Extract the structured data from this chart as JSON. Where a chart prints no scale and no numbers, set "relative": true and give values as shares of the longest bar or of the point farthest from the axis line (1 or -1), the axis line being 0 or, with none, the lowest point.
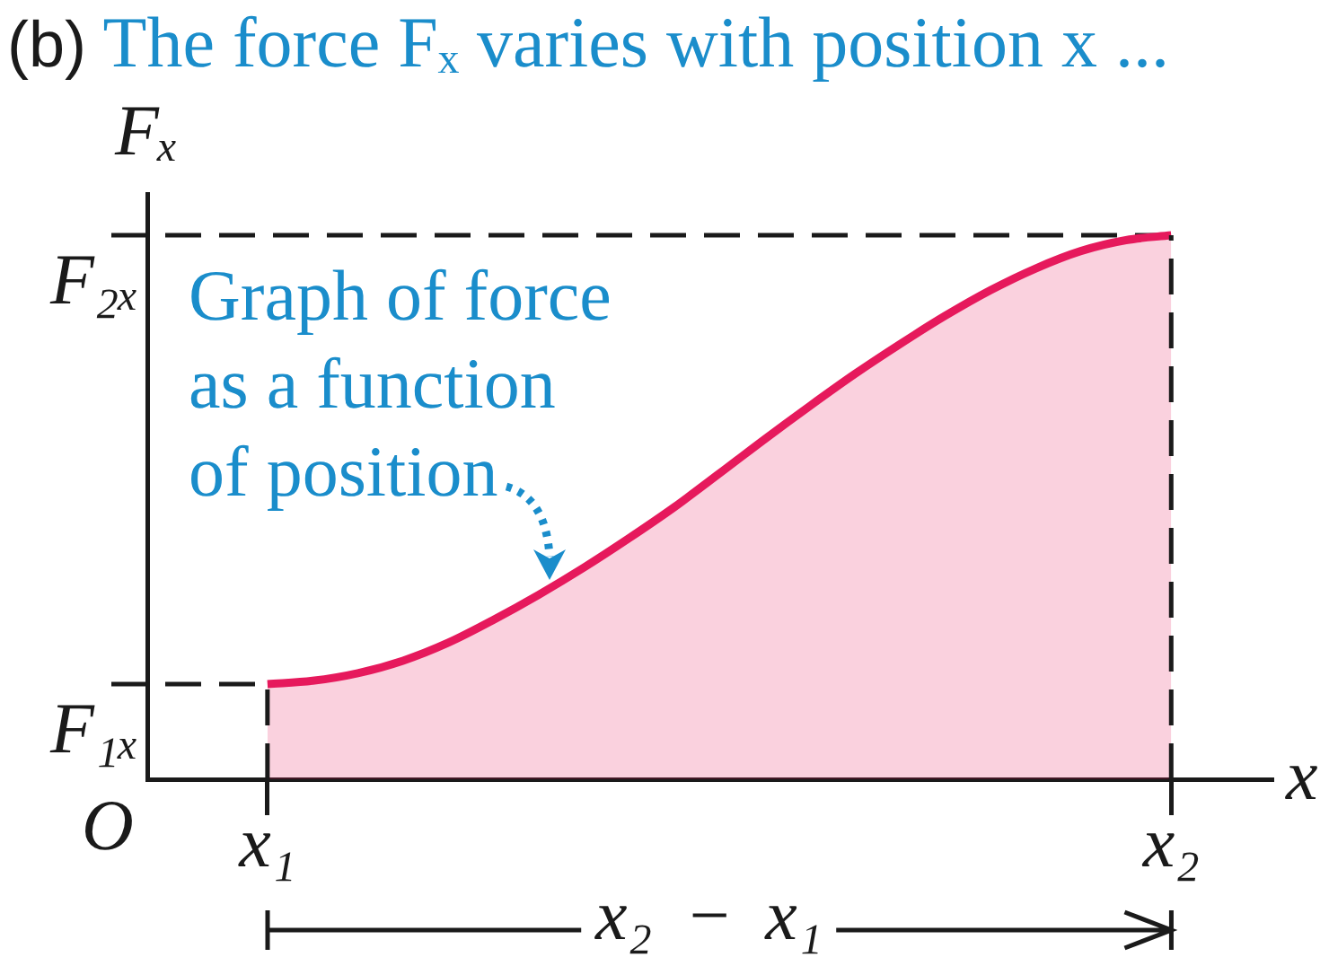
{
  "chart_data": {
    "type": "area",
    "title": "(b) The force Fₓ varies with position x ...",
    "xlabel": "x",
    "ylabel": "Fₓ",
    "categories": [
      "x₁",
      null,
      null,
      null,
      null,
      null,
      null,
      null,
      null,
      null,
      null,
      null,
      null,
      null,
      null,
      null,
      null,
      null,
      null,
      null,
      "x₂"
    ],
    "values": [
      0.175,
      0.181,
      0.195,
      0.218,
      0.251,
      0.293,
      0.339,
      0.389,
      0.443,
      0.5,
      0.562,
      0.625,
      0.686,
      0.745,
      0.8,
      0.852,
      0.899,
      0.939,
      0.971,
      0.991,
      1
    ],
    "color": "#e6195c",
    "relative": true,
    "ref_lines": [
      {
        "axis": "y",
        "value": 0.175,
        "label": "F₁ₓ",
        "line_style": "dashed"
      },
      {
        "axis": "y",
        "value": 1,
        "label": "F₂ₓ",
        "line_style": "dashed"
      },
      {
        "axis": "x",
        "value": "x₁",
        "line_style": "dashed"
      },
      {
        "axis": "x",
        "value": "x₂",
        "line_style": "dashed"
      }
    ],
    "annotations": [
      "Graph of force as a function of position",
      "O",
      "x₂ − x₁"
    ]
  }
}
